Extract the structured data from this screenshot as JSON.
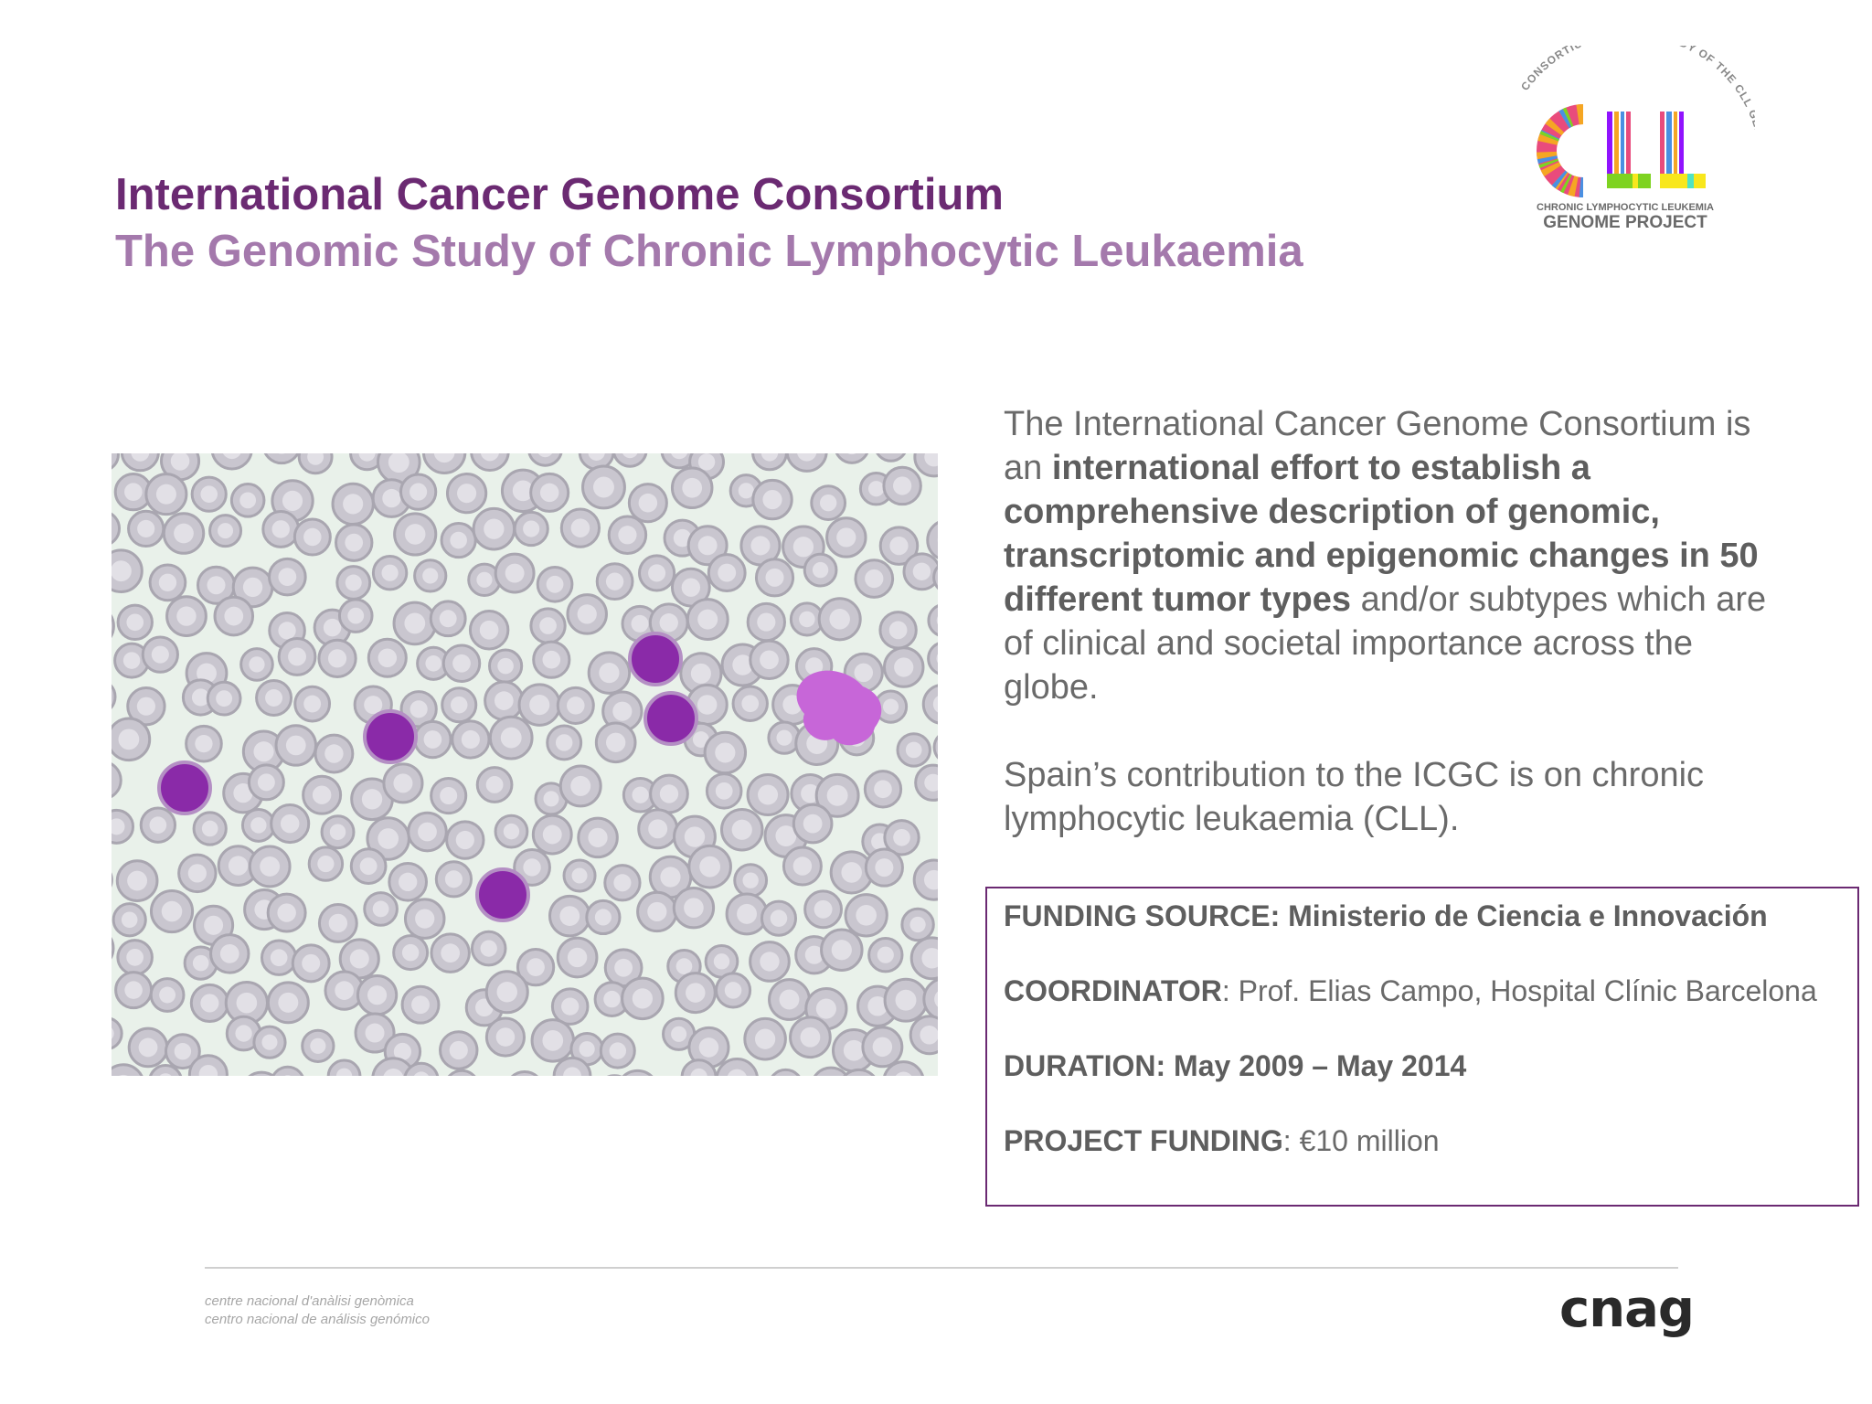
{
  "header": {
    "title": "International Cancer Genome Consortium",
    "subtitle": "The Genomic Study of Chronic Lymphocytic Leukaemia"
  },
  "logo": {
    "arc_text": "CONSORTIUM FOR THE STUDY OF THE CLL GENOME",
    "letters": "CLL",
    "line1": "CHRONIC LYMPHOCYTIC LEUKEMIA",
    "line2": "GENOME PROJECT"
  },
  "description": {
    "p1_pre": "The International Cancer Genome Consortium is an ",
    "p1_bold": "international effort to establish a comprehensive description of genomic, transcriptomic and epigenomic changes in 50 different tumor types",
    "p1_post": " and/or subtypes which are of clinical and societal importance across the globe.",
    "p2": "Spain’s contribution to the ICGC is on chronic lymphocytic leukaemia (CLL)."
  },
  "funding": {
    "source": "FUNDING SOURCE: Ministerio de Ciencia e Innovación",
    "coordinator_label": "COORDINATOR",
    "coordinator_value": ": Prof. Elias Campo, Hospital Clínic Barcelona",
    "duration": "DURATION: May 2009 – May 2014",
    "project_funding_label": "PROJECT FUNDING",
    "project_funding_value": ": €10 million"
  },
  "footer": {
    "line1": "centre nacional d'anàlisi genòmica",
    "line2": "centro nacional de análisis genómico",
    "logo": "cnag"
  },
  "colors": {
    "title": "#6b2a72",
    "subtitle": "#a479ac",
    "box_border": "#6b2a72"
  }
}
